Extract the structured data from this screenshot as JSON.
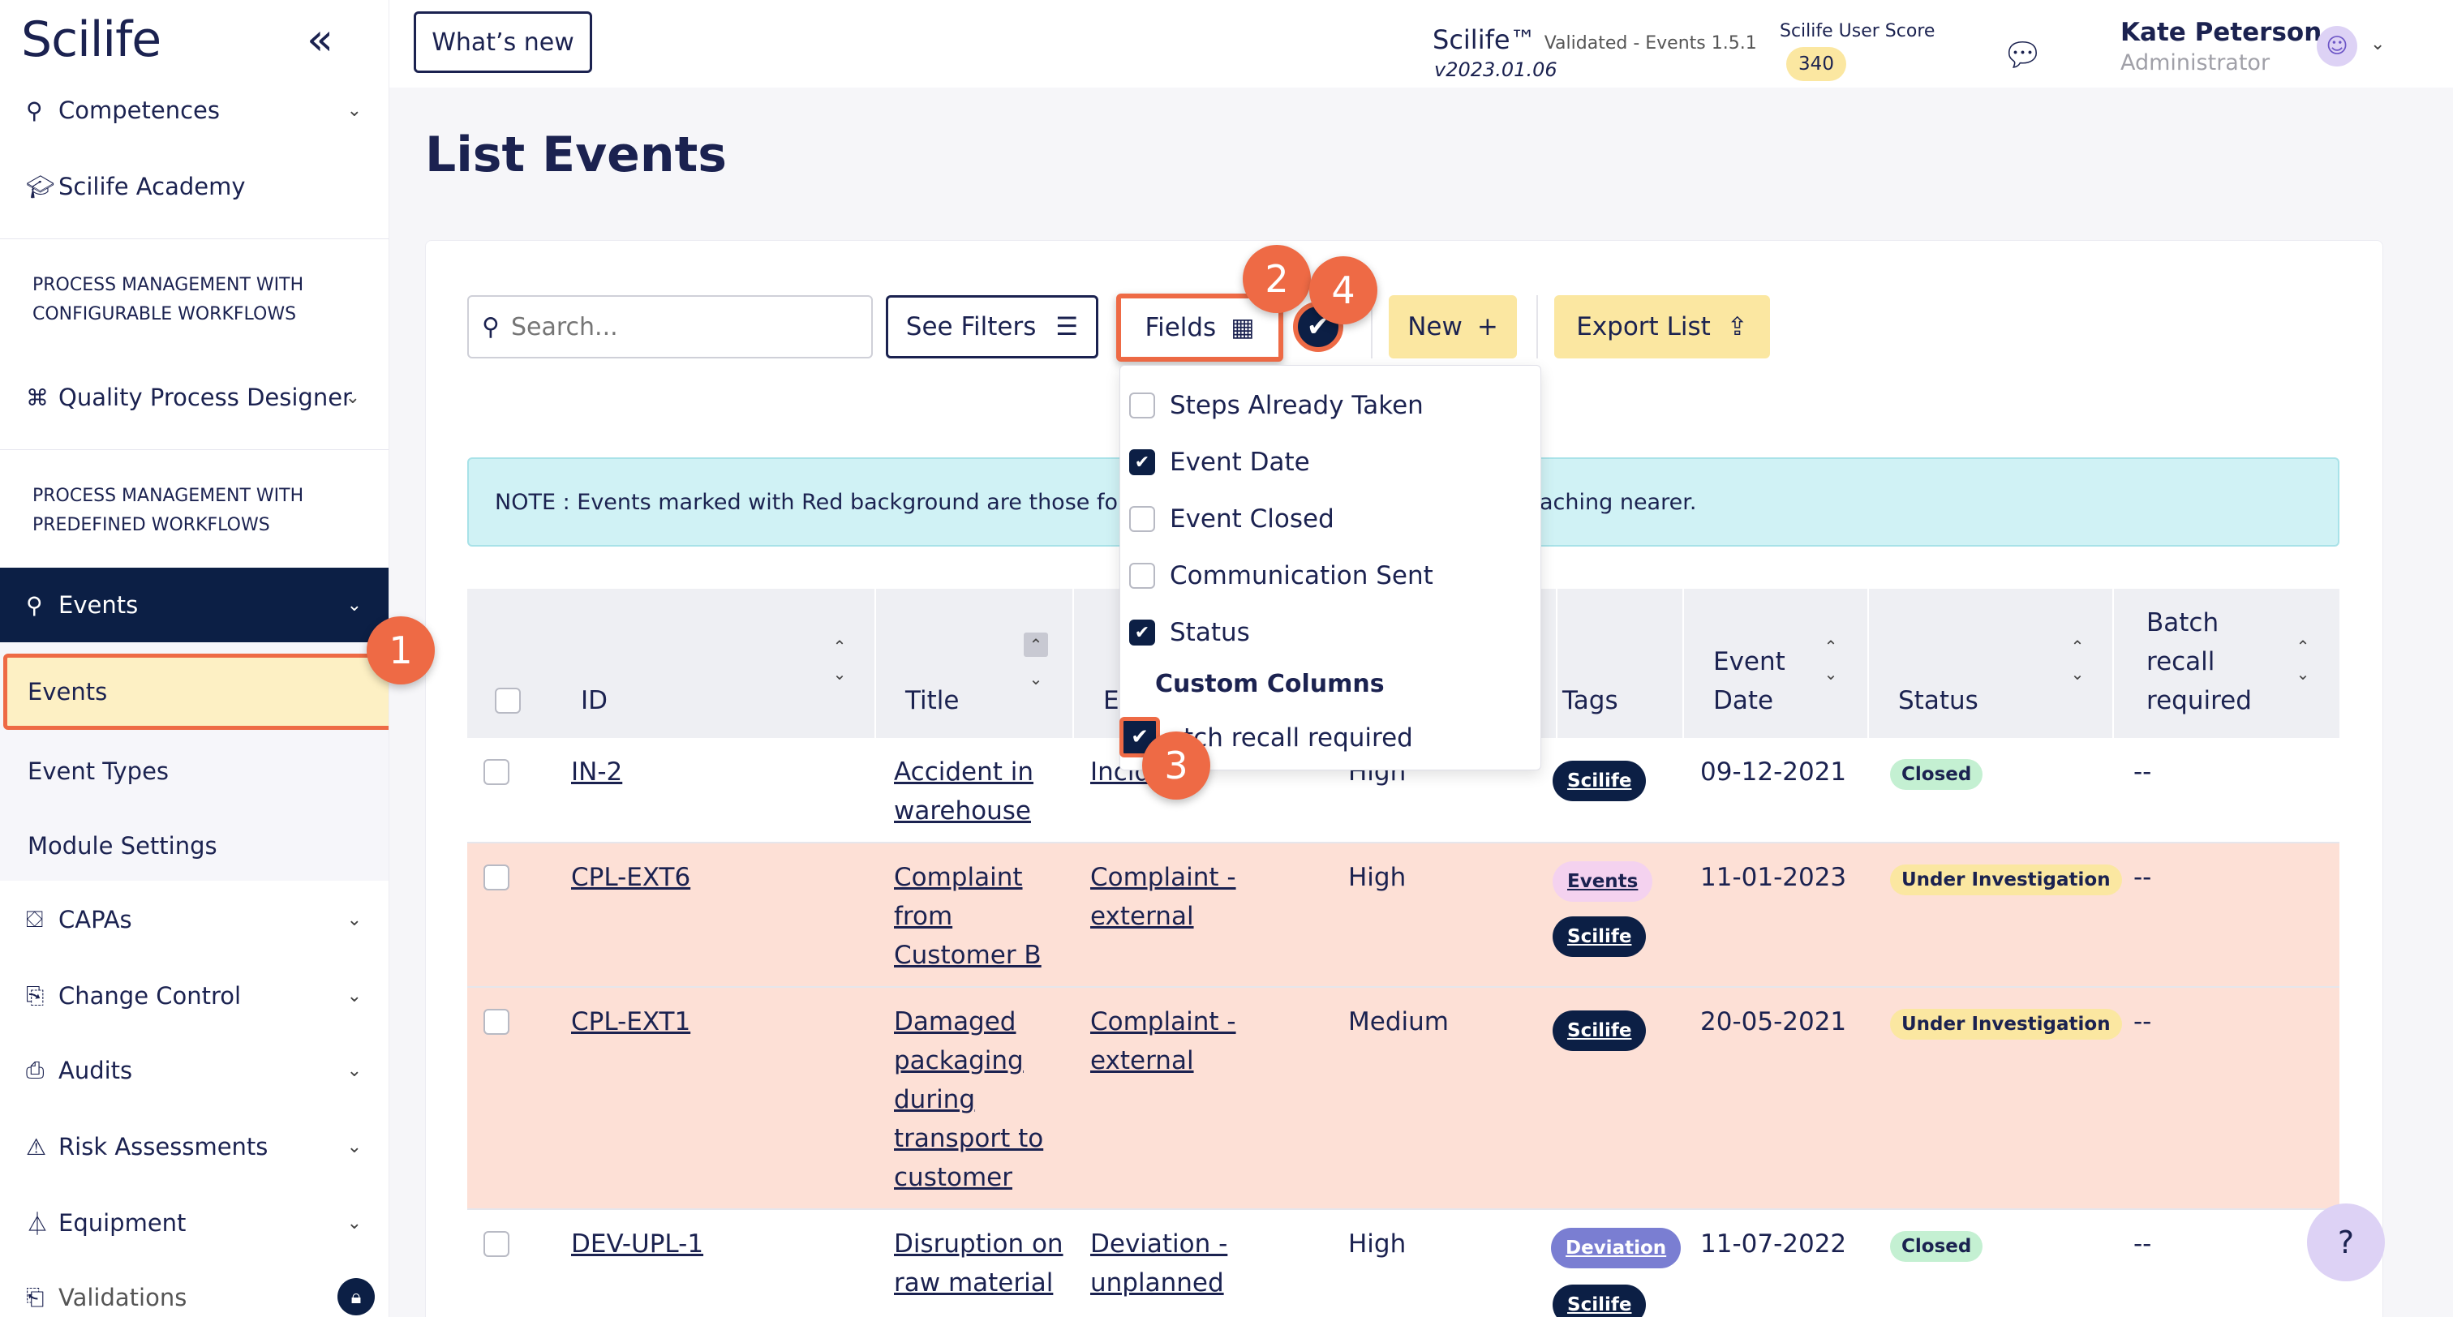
{
  "app": {
    "brand": "Scilife",
    "name": "Scilife™",
    "validated": "Validated - Events 1.5.1",
    "version": "v2023.01.06"
  },
  "header": {
    "whats_new": "What’s new",
    "score_label": "Scilife User Score",
    "score": "340",
    "user_name": "Kate Peterson",
    "user_role": "Administrator"
  },
  "sidebar": {
    "competences": "Competences",
    "academy": "Scilife Academy",
    "section1": "PROCESS MANAGEMENT WITH CONFIGURABLE WORKFLOWS",
    "designer": "Quality Process Designer",
    "section2": "PROCESS MANAGEMENT WITH PREDEFINED WORKFLOWS",
    "events": "Events",
    "sub_events": "Events",
    "event_types": "Event Types",
    "module_settings": "Module Settings",
    "capas": "CAPAs",
    "change_control": "Change Control",
    "audits": "Audits",
    "risk": "Risk Assessments",
    "equipment": "Equipment",
    "validations": "Validations"
  },
  "page": {
    "title": "List Events",
    "search_placeholder": "Search...",
    "see_filters": "See Filters",
    "fields": "Fields",
    "new": "New",
    "export": "Export List",
    "note": "NOTE : Events marked with Red background are those for wh",
    "note_end": "aching nearer."
  },
  "fields_menu": {
    "options": [
      {
        "label": "Steps Already Taken",
        "checked": false
      },
      {
        "label": "Event Date",
        "checked": true
      },
      {
        "label": "Event Closed",
        "checked": false
      },
      {
        "label": "Communication Sent",
        "checked": false
      },
      {
        "label": "Status",
        "checked": true
      }
    ],
    "custom_header": "Custom Columns",
    "custom_option": "atch recall required"
  },
  "steps": [
    "1",
    "2",
    "3",
    "4"
  ],
  "table": {
    "headers": {
      "id": "ID",
      "title": "Title",
      "type": "E",
      "tags": "Tags",
      "event_date": "Event Date",
      "status": "Status",
      "batch": "Batch recall required"
    },
    "rows": [
      {
        "id": "IN-2",
        "title": "Accident in warehouse",
        "type": "Incid",
        "priority": "High",
        "tags": [
          "Scilife"
        ],
        "date": "09-12-2021",
        "status": "Closed",
        "batch": "--"
      },
      {
        "id": "CPL-EXT6",
        "title": "Complaint from Customer B",
        "type": "Complaint - external",
        "priority": "High",
        "tags": [
          "Events",
          "Scilife"
        ],
        "date": "11-01-2023",
        "status": "Under Investigation",
        "batch": "--"
      },
      {
        "id": "CPL-EXT1",
        "title": "Damaged packaging during transport to customer",
        "type": "Complaint - external",
        "priority": "Medium",
        "tags": [
          "Scilife"
        ],
        "date": "20-05-2021",
        "status": "Under Investigation",
        "batch": "--"
      },
      {
        "id": "DEV-UPL-1",
        "title": "Disruption on raw material",
        "type": "Deviation - unplanned",
        "priority": "High",
        "tags": [
          "Deviation",
          "Scilife"
        ],
        "date": "11-07-2022",
        "status": "Closed",
        "batch": "--"
      }
    ]
  },
  "colors": {
    "navy": "#0c1f45",
    "accent_yellow": "#fbe7a1",
    "highlight_orange": "#ee6a45",
    "overdue_row": "#fde0d6",
    "note_bg": "#d0f2f5"
  }
}
